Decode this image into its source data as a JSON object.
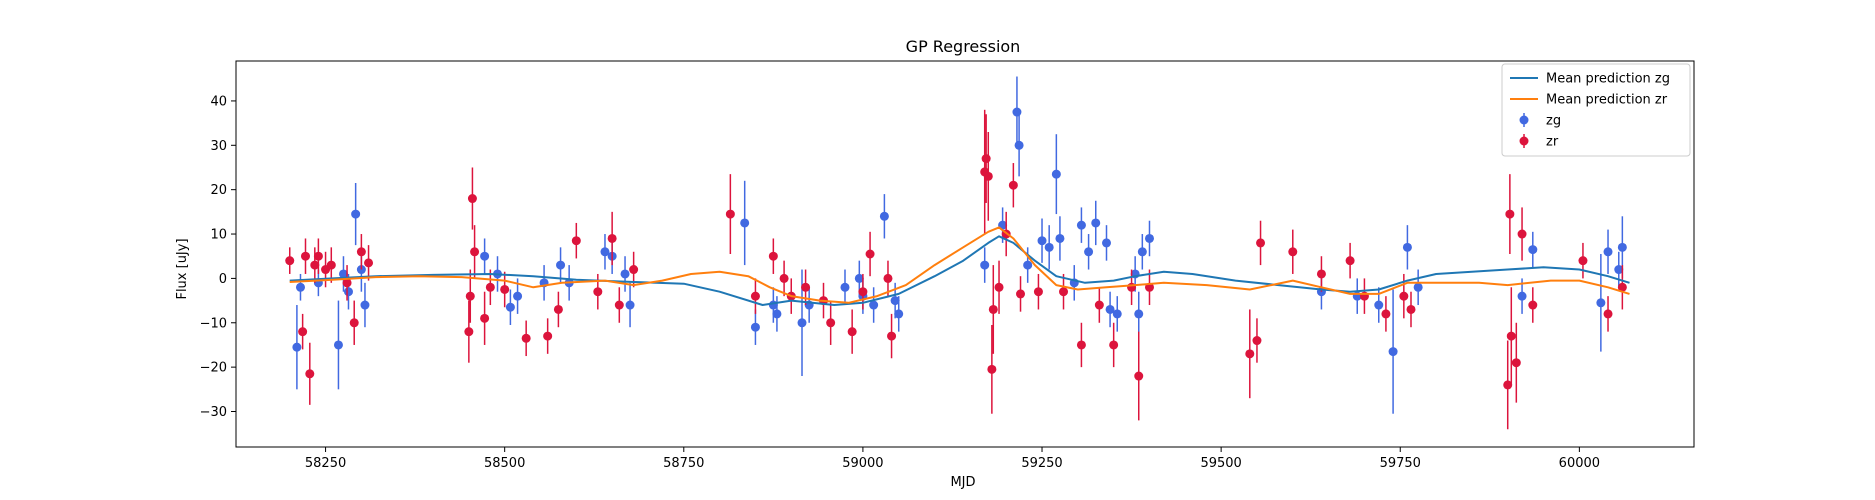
{
  "chart_data": {
    "type": "scatter",
    "title": "GP Regression",
    "xlabel": "MJD",
    "ylabel": "Flux [uJy]",
    "xlim": [
      58125,
      60160
    ],
    "ylim": [
      -38,
      49
    ],
    "xticks": [
      58250,
      58500,
      58750,
      59000,
      59250,
      59500,
      59750,
      60000
    ],
    "yticks": [
      -30,
      -20,
      -10,
      0,
      10,
      20,
      30,
      40
    ],
    "grid": false,
    "legend_position": "top-right",
    "series": [
      {
        "name": "Mean prediction zg",
        "kind": "line",
        "color": "#1f77b4",
        "points": [
          [
            58200,
            -0.5
          ],
          [
            58260,
            0.0
          ],
          [
            58320,
            0.5
          ],
          [
            58400,
            0.8
          ],
          [
            58480,
            1.0
          ],
          [
            58540,
            0.5
          ],
          [
            58600,
            -0.3
          ],
          [
            58680,
            -0.8
          ],
          [
            58750,
            -1.2
          ],
          [
            58800,
            -3.0
          ],
          [
            58860,
            -6.0
          ],
          [
            58900,
            -5.0
          ],
          [
            58960,
            -6.0
          ],
          [
            59000,
            -5.5
          ],
          [
            59050,
            -3.5
          ],
          [
            59100,
            0.5
          ],
          [
            59140,
            4.0
          ],
          [
            59175,
            8.0
          ],
          [
            59190,
            9.5
          ],
          [
            59210,
            8.0
          ],
          [
            59240,
            4.0
          ],
          [
            59270,
            0.5
          ],
          [
            59310,
            -1.0
          ],
          [
            59350,
            -0.5
          ],
          [
            59380,
            0.5
          ],
          [
            59420,
            1.5
          ],
          [
            59460,
            1.0
          ],
          [
            59520,
            -0.5
          ],
          [
            59580,
            -1.5
          ],
          [
            59640,
            -2.5
          ],
          [
            59680,
            -3.0
          ],
          [
            59720,
            -2.5
          ],
          [
            59760,
            -0.5
          ],
          [
            59800,
            1.0
          ],
          [
            59850,
            1.5
          ],
          [
            59900,
            2.0
          ],
          [
            59950,
            2.5
          ],
          [
            60000,
            2.0
          ],
          [
            60040,
            0.5
          ],
          [
            60070,
            -1.0
          ]
        ]
      },
      {
        "name": "Mean prediction zr",
        "kind": "line",
        "color": "#ff7f0e",
        "points": [
          [
            58200,
            -0.8
          ],
          [
            58260,
            -0.3
          ],
          [
            58320,
            0.3
          ],
          [
            58380,
            0.5
          ],
          [
            58440,
            0.3
          ],
          [
            58500,
            -0.5
          ],
          [
            58540,
            -2.0
          ],
          [
            58580,
            -1.0
          ],
          [
            58640,
            -0.5
          ],
          [
            58680,
            -1.5
          ],
          [
            58720,
            -0.5
          ],
          [
            58760,
            1.0
          ],
          [
            58800,
            1.5
          ],
          [
            58840,
            0.5
          ],
          [
            58870,
            -2.0
          ],
          [
            58900,
            -4.0
          ],
          [
            58940,
            -5.0
          ],
          [
            58980,
            -5.5
          ],
          [
            59020,
            -4.0
          ],
          [
            59060,
            -1.5
          ],
          [
            59100,
            3.0
          ],
          [
            59140,
            7.0
          ],
          [
            59175,
            10.5
          ],
          [
            59190,
            11.5
          ],
          [
            59210,
            9.0
          ],
          [
            59240,
            3.0
          ],
          [
            59270,
            -1.5
          ],
          [
            59300,
            -2.5
          ],
          [
            59340,
            -2.0
          ],
          [
            59380,
            -1.5
          ],
          [
            59420,
            -1.0
          ],
          [
            59480,
            -1.5
          ],
          [
            59540,
            -2.5
          ],
          [
            59570,
            -1.5
          ],
          [
            59600,
            -0.5
          ],
          [
            59640,
            -2.0
          ],
          [
            59680,
            -3.5
          ],
          [
            59720,
            -3.5
          ],
          [
            59760,
            -1.0
          ],
          [
            59800,
            -1.0
          ],
          [
            59860,
            -1.0
          ],
          [
            59900,
            -1.5
          ],
          [
            59960,
            -0.5
          ],
          [
            60000,
            -0.5
          ],
          [
            60040,
            -2.0
          ],
          [
            60070,
            -3.5
          ]
        ]
      },
      {
        "name": "zg",
        "kind": "errorbar",
        "color": "#4169e1",
        "points": [
          [
            58210,
            -15.5,
            9.5
          ],
          [
            58215,
            -2,
            3
          ],
          [
            58240,
            -1,
            3
          ],
          [
            58268,
            -15,
            10
          ],
          [
            58275,
            1,
            4
          ],
          [
            58282,
            -3,
            4
          ],
          [
            58292,
            14.5,
            7
          ],
          [
            58300,
            2,
            5
          ],
          [
            58305,
            -6,
            5
          ],
          [
            58472,
            5,
            4
          ],
          [
            58490,
            1,
            4
          ],
          [
            58508,
            -6.5,
            4
          ],
          [
            58518,
            -4,
            4
          ],
          [
            58555,
            -1,
            4
          ],
          [
            58578,
            3,
            4
          ],
          [
            58590,
            -1,
            4
          ],
          [
            58640,
            6,
            4
          ],
          [
            58650,
            5,
            4
          ],
          [
            58668,
            1,
            4
          ],
          [
            58675,
            -6,
            5
          ],
          [
            58835,
            12.5,
            9.5
          ],
          [
            58850,
            -11,
            4
          ],
          [
            58875,
            -6,
            4
          ],
          [
            58880,
            -8,
            4
          ],
          [
            58915,
            -10,
            12
          ],
          [
            58925,
            -6,
            4
          ],
          [
            58975,
            -2,
            4
          ],
          [
            58995,
            0,
            4
          ],
          [
            59000,
            -4,
            4
          ],
          [
            59015,
            -6,
            4
          ],
          [
            59030,
            14,
            5
          ],
          [
            59045,
            -5,
            4
          ],
          [
            59050,
            -8,
            4
          ],
          [
            59170,
            3,
            4
          ],
          [
            59195,
            12,
            4
          ],
          [
            59215,
            37.5,
            8
          ],
          [
            59218,
            30,
            7
          ],
          [
            59230,
            3,
            4
          ],
          [
            59250,
            8.5,
            5
          ],
          [
            59260,
            7,
            5
          ],
          [
            59270,
            23.5,
            9
          ],
          [
            59275,
            9,
            5
          ],
          [
            59295,
            -1,
            4
          ],
          [
            59305,
            12,
            4
          ],
          [
            59315,
            6,
            4
          ],
          [
            59325,
            12.5,
            5
          ],
          [
            59340,
            8,
            4
          ],
          [
            59345,
            -7,
            4
          ],
          [
            59355,
            -8,
            4
          ],
          [
            59380,
            1,
            4
          ],
          [
            59385,
            -8,
            5
          ],
          [
            59390,
            6,
            4
          ],
          [
            59400,
            9,
            4
          ],
          [
            59640,
            -3,
            4
          ],
          [
            59690,
            -4,
            4
          ],
          [
            59720,
            -6,
            4
          ],
          [
            59740,
            -16.5,
            14
          ],
          [
            59760,
            7,
            5
          ],
          [
            59775,
            -2,
            4
          ],
          [
            59920,
            -4,
            4
          ],
          [
            59935,
            6.5,
            4
          ],
          [
            60030,
            -5.5,
            11
          ],
          [
            60040,
            6,
            5
          ],
          [
            60055,
            2,
            4
          ],
          [
            60060,
            7,
            7
          ]
        ]
      },
      {
        "name": "zr",
        "kind": "errorbar",
        "color": "#dc143c",
        "points": [
          [
            58200,
            4,
            3
          ],
          [
            58218,
            -12,
            4
          ],
          [
            58222,
            5,
            4
          ],
          [
            58228,
            -21.5,
            7
          ],
          [
            58235,
            3,
            4
          ],
          [
            58240,
            5,
            4
          ],
          [
            58250,
            2,
            4
          ],
          [
            58258,
            3,
            4
          ],
          [
            58280,
            -1,
            4
          ],
          [
            58290,
            -10,
            5
          ],
          [
            58300,
            6,
            4
          ],
          [
            58310,
            3.5,
            4
          ],
          [
            58450,
            -12,
            7
          ],
          [
            58452,
            -4,
            6
          ],
          [
            58455,
            18,
            7
          ],
          [
            58458,
            6,
            6
          ],
          [
            58472,
            -9,
            6
          ],
          [
            58480,
            -2,
            4
          ],
          [
            58500,
            -2.5,
            4
          ],
          [
            58530,
            -13.5,
            4
          ],
          [
            58560,
            -13,
            4
          ],
          [
            58575,
            -7,
            4
          ],
          [
            58600,
            8.5,
            4
          ],
          [
            58630,
            -3,
            4
          ],
          [
            58650,
            9,
            6
          ],
          [
            58660,
            -6,
            4
          ],
          [
            58680,
            2,
            4
          ],
          [
            58815,
            14.5,
            9
          ],
          [
            58850,
            -4,
            4
          ],
          [
            58875,
            5,
            4
          ],
          [
            58890,
            0,
            4
          ],
          [
            58900,
            -4,
            4
          ],
          [
            58920,
            -2,
            4
          ],
          [
            58945,
            -5,
            4
          ],
          [
            58955,
            -10,
            5
          ],
          [
            58985,
            -12,
            5
          ],
          [
            59000,
            -3,
            4
          ],
          [
            59010,
            5.5,
            5
          ],
          [
            59035,
            0,
            4
          ],
          [
            59040,
            -13,
            5
          ],
          [
            59170,
            24,
            14
          ],
          [
            59172,
            27,
            10
          ],
          [
            59175,
            23,
            10
          ],
          [
            59180,
            -20.5,
            10
          ],
          [
            59182,
            -7,
            10
          ],
          [
            59190,
            -2,
            6
          ],
          [
            59200,
            10,
            5
          ],
          [
            59210,
            21,
            5
          ],
          [
            59220,
            -3.5,
            4
          ],
          [
            59245,
            -3,
            4
          ],
          [
            59280,
            -3,
            4
          ],
          [
            59305,
            -15,
            5
          ],
          [
            59330,
            -6,
            4
          ],
          [
            59350,
            -15,
            5
          ],
          [
            59375,
            -2,
            4
          ],
          [
            59385,
            -22,
            10
          ],
          [
            59400,
            -2,
            4
          ],
          [
            59540,
            -17,
            10
          ],
          [
            59550,
            -14,
            5
          ],
          [
            59555,
            8,
            5
          ],
          [
            59600,
            6,
            5
          ],
          [
            59640,
            1,
            4
          ],
          [
            59680,
            4,
            4
          ],
          [
            59700,
            -4,
            4
          ],
          [
            59730,
            -8,
            4
          ],
          [
            59755,
            -4,
            5
          ],
          [
            59765,
            -7,
            4
          ],
          [
            59900,
            -24,
            10
          ],
          [
            59903,
            14.5,
            9
          ],
          [
            59905,
            -13,
            11
          ],
          [
            59912,
            -19,
            9
          ],
          [
            59920,
            10,
            6
          ],
          [
            59935,
            -6,
            4
          ],
          [
            60005,
            4,
            4
          ],
          [
            60040,
            -8,
            4
          ],
          [
            60060,
            -2,
            5
          ]
        ]
      }
    ]
  }
}
